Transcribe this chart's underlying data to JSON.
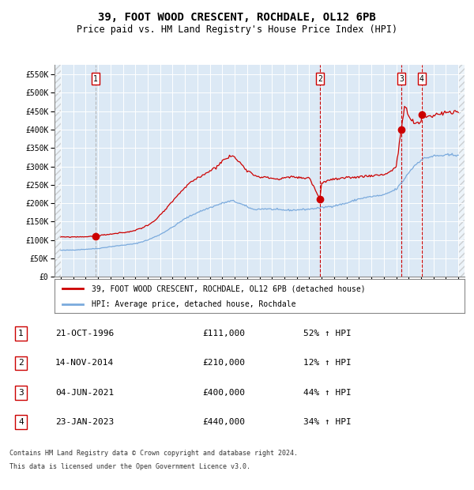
{
  "title": "39, FOOT WOOD CRESCENT, ROCHDALE, OL12 6PB",
  "subtitle": "Price paid vs. HM Land Registry's House Price Index (HPI)",
  "hpi_label": "HPI: Average price, detached house, Rochdale",
  "property_label": "39, FOOT WOOD CRESCENT, ROCHDALE, OL12 6PB (detached house)",
  "footer_line1": "Contains HM Land Registry data © Crown copyright and database right 2024.",
  "footer_line2": "This data is licensed under the Open Government Licence v3.0.",
  "sales": [
    {
      "num": 1,
      "date": "21-OCT-1996",
      "price": 111000,
      "pct": "52%",
      "dir": "↑"
    },
    {
      "num": 2,
      "date": "14-NOV-2014",
      "price": 210000,
      "pct": "12%",
      "dir": "↑"
    },
    {
      "num": 3,
      "date": "04-JUN-2021",
      "price": 400000,
      "pct": "44%",
      "dir": "↑"
    },
    {
      "num": 4,
      "date": "23-JAN-2023",
      "price": 440000,
      "pct": "34%",
      "dir": "↑"
    }
  ],
  "sale_dates_decimal": [
    1996.81,
    2014.87,
    2021.42,
    2023.06
  ],
  "plot_bg_color": "#dce9f5",
  "hpi_color": "#7aaadd",
  "property_color": "#cc0000",
  "vline_color_red": "#cc0000",
  "vline_color_grey": "#aaaaaa",
  "grid_color": "#ffffff",
  "ylim": [
    0,
    575000
  ],
  "yticks": [
    0,
    50000,
    100000,
    150000,
    200000,
    250000,
    300000,
    350000,
    400000,
    450000,
    500000,
    550000
  ],
  "xlim_start": 1993.5,
  "xlim_end": 2026.5,
  "hpi_anchors": {
    "1994.0": 72000,
    "1995.0": 73000,
    "1996.0": 75000,
    "1997.0": 77000,
    "1998.0": 82000,
    "1999.0": 86000,
    "2000.0": 90000,
    "2001.0": 100000,
    "2002.0": 115000,
    "2003.0": 135000,
    "2004.0": 158000,
    "2005.0": 175000,
    "2006.0": 188000,
    "2007.0": 200000,
    "2007.8": 207000,
    "2008.5": 198000,
    "2009.5": 183000,
    "2010.5": 185000,
    "2011.5": 182000,
    "2012.5": 181000,
    "2013.0": 182000,
    "2014.0": 184000,
    "2015.0": 188000,
    "2016.0": 193000,
    "2017.0": 200000,
    "2018.0": 212000,
    "2019.0": 218000,
    "2020.0": 222000,
    "2021.0": 238000,
    "2021.5": 258000,
    "2022.0": 283000,
    "2022.5": 303000,
    "2023.0": 318000,
    "2023.5": 324000,
    "2024.0": 328000,
    "2025.0": 330000,
    "2026.0": 332000
  },
  "prop_anchors": {
    "1994.0": 108000,
    "1995.0": 108500,
    "1996.0": 109000,
    "1996.81": 111000,
    "1997.5": 114000,
    "1998.5": 118000,
    "1999.5": 122000,
    "2000.5": 132000,
    "2001.5": 150000,
    "2002.5": 185000,
    "2003.5": 225000,
    "2004.5": 258000,
    "2005.5": 278000,
    "2006.5": 298000,
    "2007.0": 315000,
    "2007.8": 330000,
    "2008.5": 308000,
    "2009.0": 290000,
    "2009.5": 278000,
    "2010.0": 272000,
    "2010.5": 270000,
    "2011.0": 268000,
    "2011.5": 265000,
    "2012.0": 268000,
    "2012.5": 272000,
    "2013.0": 270000,
    "2013.5": 268000,
    "2014.0": 270000,
    "2014.87": 210000,
    "2015.0": 255000,
    "2015.5": 262000,
    "2016.0": 265000,
    "2017.0": 268000,
    "2018.0": 272000,
    "2019.0": 275000,
    "2020.0": 278000,
    "2020.5": 285000,
    "2021.0": 300000,
    "2021.42": 400000,
    "2021.7": 470000,
    "2022.0": 435000,
    "2022.5": 415000,
    "2023.0": 420000,
    "2023.06": 440000,
    "2023.5": 435000,
    "2024.0": 438000,
    "2024.5": 443000,
    "2025.0": 448000,
    "2025.5": 445000,
    "2026.0": 448000
  }
}
